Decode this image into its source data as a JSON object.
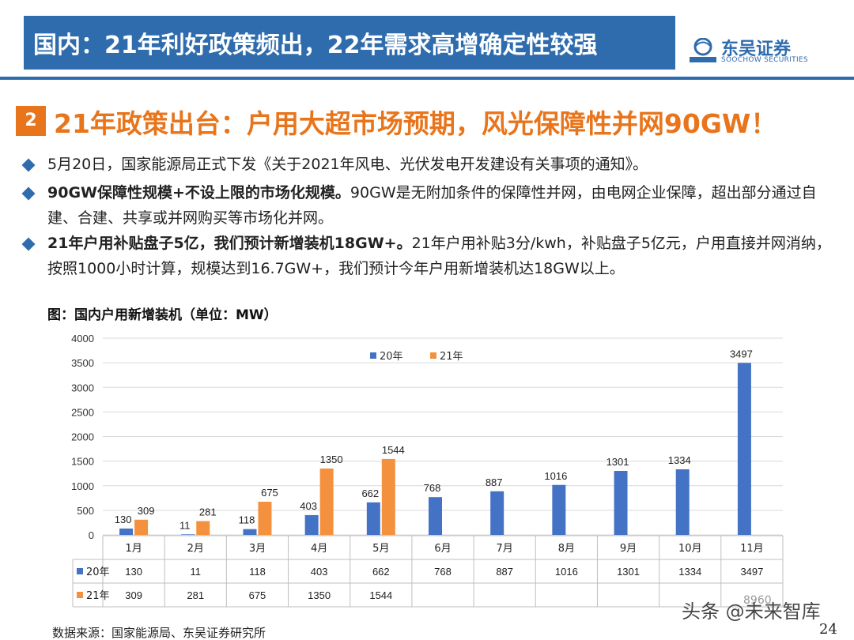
{
  "header": {
    "title": "国内：21年利好政策频出，22年需求高增确定性较强",
    "logo_cn": "东吴证券",
    "logo_en": "SOOCHOW SECURITIES",
    "brand_color": "#2f6cad"
  },
  "section": {
    "number": "2",
    "title": "21年政策出台：户用大超市场预期，风光保障性并网90GW！",
    "accent_color": "#e8751c"
  },
  "bullets": [
    {
      "bold": "",
      "text": "5月20日，国家能源局正式下发《关于2021年风电、光伏发电开发建设有关事项的通知》。"
    },
    {
      "bold": "90GW保障性规模+不设上限的市场化规模。",
      "text": "90GW是无附加条件的保障性并网，由电网企业保障，超出部分通过自建、合建、共享或并网购买等市场化并网。"
    },
    {
      "bold": "21年户用补贴盘子5亿，我们预计新增装机18GW+。",
      "text": "21年户用补贴3分/kwh，补贴盘子5亿元，户用直接并网消纳，按照1000小时计算，规模达到16.7GW+，我们预计今年户用新增装机达18GW以上。"
    }
  ],
  "figure_title": "图：国内户用新增装机（单位：MW）",
  "chart_data": {
    "type": "bar",
    "categories": [
      "1月",
      "2月",
      "3月",
      "4月",
      "5月",
      "6月",
      "7月",
      "8月",
      "9月",
      "10月",
      "11月"
    ],
    "series": [
      {
        "name": "20年",
        "color": "#4472c4",
        "values": [
          130,
          11,
          118,
          403,
          662,
          768,
          887,
          1016,
          1301,
          1334,
          3497
        ]
      },
      {
        "name": "21年",
        "color": "#f4913e",
        "values": [
          309,
          281,
          675,
          1350,
          1544,
          null,
          null,
          null,
          null,
          null,
          null
        ]
      }
    ],
    "yticks": [
      "0",
      "500",
      "1000",
      "1500",
      "2000",
      "2500",
      "3000",
      "3500",
      "4000"
    ],
    "ylim": [
      0,
      4000
    ],
    "legend": "top",
    "data_table": true
  },
  "source": "数据来源：国家能源局、东吴证券研究所",
  "page_number": "24",
  "watermark": "头条 @未来智库",
  "watermark_small": "8960"
}
